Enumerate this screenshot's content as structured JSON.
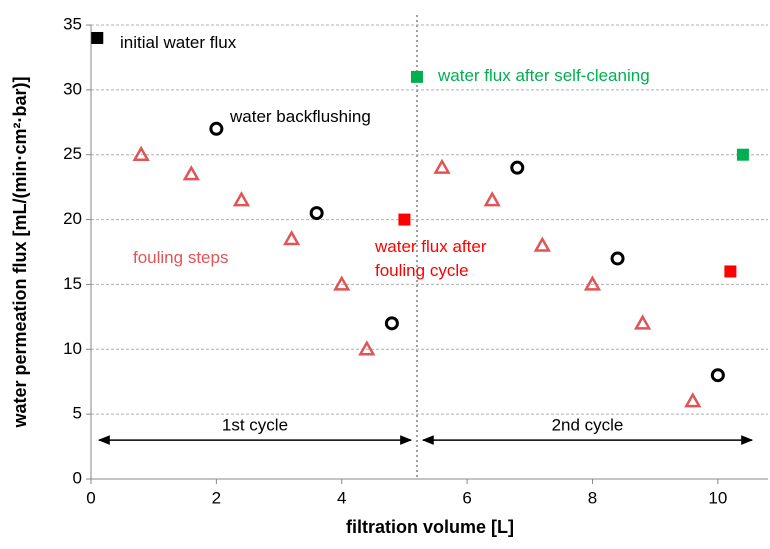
{
  "chart_data": {
    "type": "scatter",
    "x_label": "filtration  volume [L]",
    "y_label": "water permeation flux [mL/(min·cm²·bar)]",
    "xlim": [
      0,
      10.8
    ],
    "xticks": [
      0,
      2,
      4,
      6,
      8,
      10
    ],
    "ylim": [
      0,
      35
    ],
    "yticks": [
      0,
      5,
      10,
      15,
      20,
      25,
      30,
      35
    ],
    "grid": true,
    "vline": 5.2,
    "cycle_labels": [
      "1st cycle",
      "2nd cycle"
    ],
    "cycle_arrow_y": 3,
    "series": [
      {
        "name": "initial water flux",
        "color": "#000000",
        "marker": "square",
        "x": [
          0.1
        ],
        "values": [
          34
        ]
      },
      {
        "name": "fouling steps",
        "color": "#e05555",
        "marker": "triangle",
        "x": [
          0.8,
          1.6,
          2.4,
          3.2,
          4.0,
          4.4,
          5.6,
          6.4,
          7.2,
          8.0,
          8.8,
          9.6
        ],
        "values": [
          25,
          23.5,
          21.5,
          18.5,
          15,
          10,
          24,
          21.5,
          18,
          15,
          12,
          6
        ]
      },
      {
        "name": "water backflushing",
        "color": "#000000",
        "marker": "circle",
        "x": [
          2,
          3.6,
          4.8,
          6.8,
          8.4,
          10
        ],
        "values": [
          27,
          20.5,
          12,
          24,
          17,
          8
        ]
      },
      {
        "name": "water flux after fouling cycle",
        "color": "#ff0000",
        "marker": "square",
        "x": [
          5.0,
          10.2
        ],
        "values": [
          20,
          16
        ]
      },
      {
        "name": "water flux after self-cleaning",
        "color": "#00b050",
        "marker": "square",
        "x": [
          5.2,
          10.4
        ],
        "values": [
          31,
          25
        ]
      }
    ]
  }
}
